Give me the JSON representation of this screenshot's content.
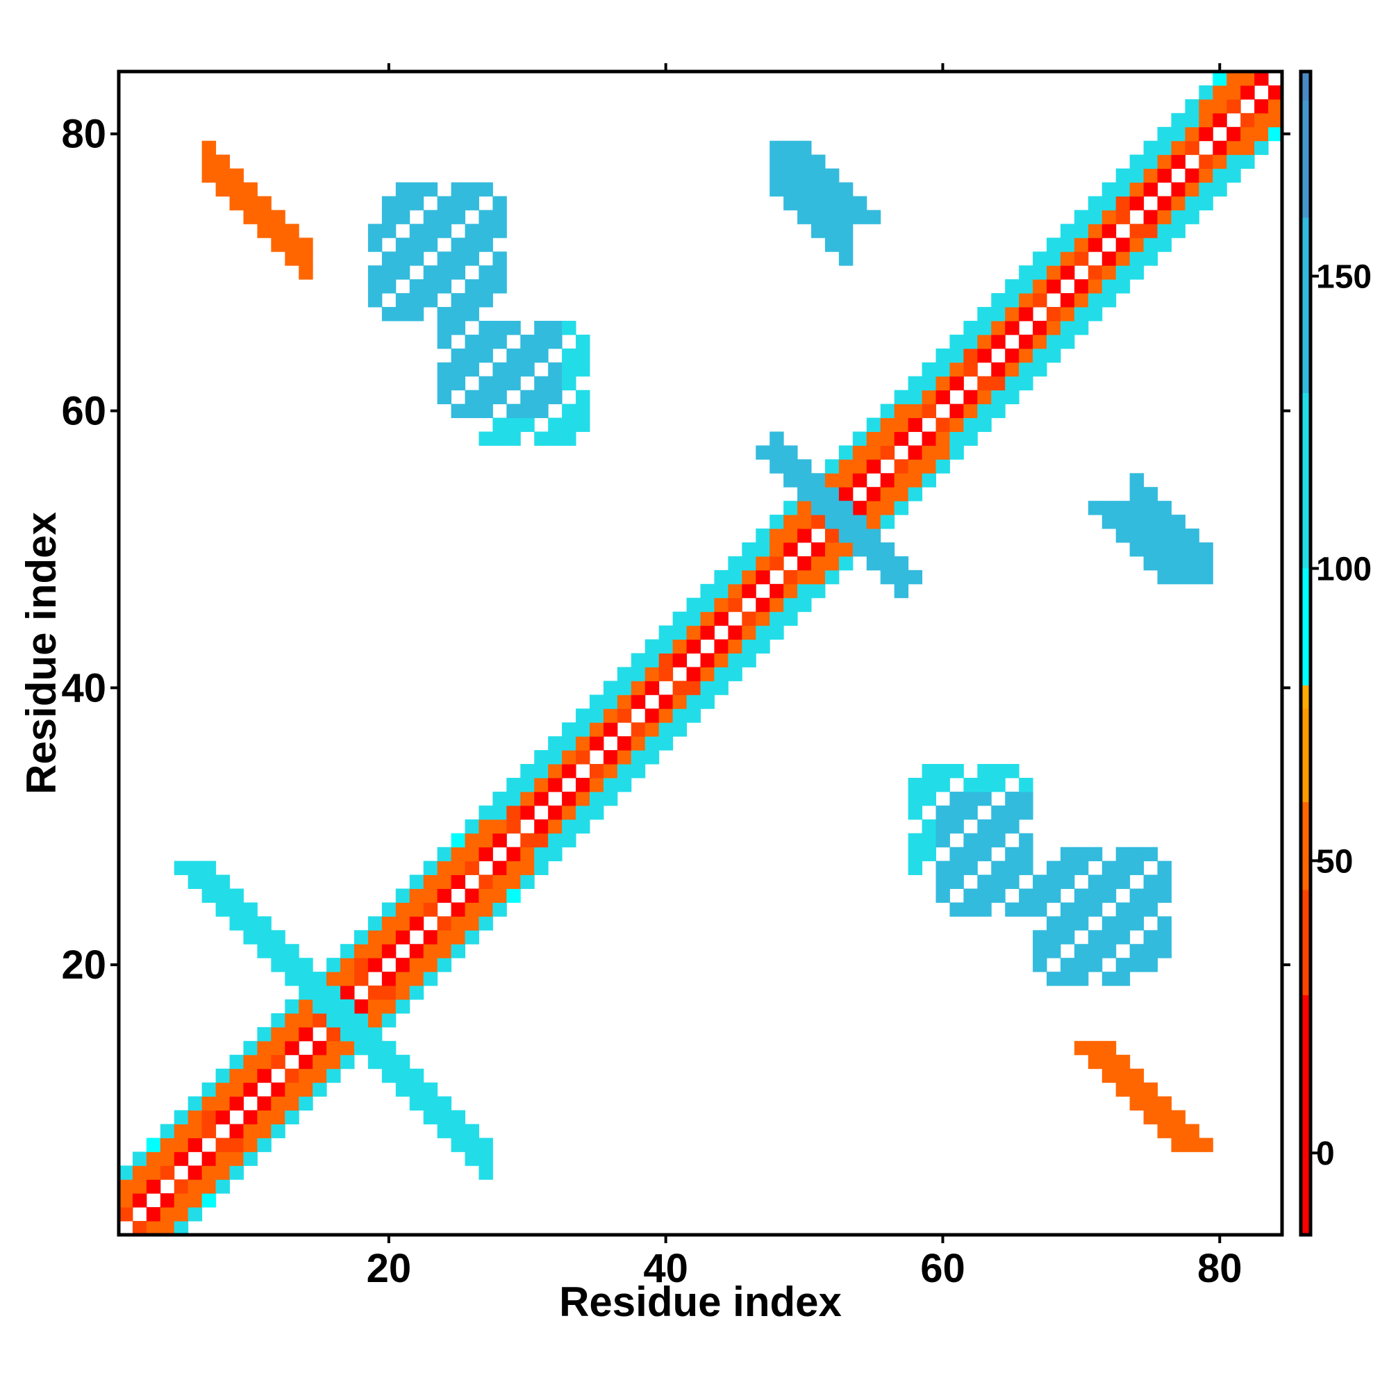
{
  "chart_data": {
    "type": "heatmap",
    "title": "",
    "xlabel": "Residue index",
    "ylabel": "Residue index",
    "xlim": [
      0.5,
      84.5
    ],
    "ylim": [
      0.5,
      84.5
    ],
    "x_ticks": [
      20,
      40,
      60,
      80
    ],
    "y_ticks": [
      20,
      40,
      60,
      80
    ],
    "symmetric": true,
    "grid": false,
    "colorbar": {
      "range": [
        -14,
        185
      ],
      "ticks": [
        0,
        50,
        100,
        150
      ],
      "stops": [
        {
          "value": -14,
          "color": "#ff0000"
        },
        {
          "value": 27,
          "color": "#ff4400"
        },
        {
          "value": 45,
          "color": "#ff6600"
        },
        {
          "value": 60,
          "color": "#ff9900"
        },
        {
          "value": 76,
          "color": "#ffaa00"
        },
        {
          "value": 80,
          "color": "#00ffff"
        },
        {
          "value": 100,
          "color": "#22dde8"
        },
        {
          "value": 130,
          "color": "#33bbdd"
        },
        {
          "value": 160,
          "color": "#4499cc"
        },
        {
          "value": 180,
          "color": "#4a8ac2"
        },
        {
          "value": 185,
          "color": "#ffffff"
        }
      ]
    },
    "diagonal_band": {
      "offsets": [
        1,
        2,
        3,
        4
      ],
      "values": [
        20,
        45,
        50,
        100
      ]
    },
    "blocks": [
      {
        "name": "antiparallel-hairpin-1",
        "kind": "anti",
        "sum": 33,
        "x": [
          12,
          26
        ],
        "width": 2,
        "value": 170
      },
      {
        "name": "antiparallel-hairpin-1-edge",
        "kind": "anti",
        "sum": 33,
        "x": [
          11,
          27
        ],
        "width": 3,
        "value": 120
      },
      {
        "name": "n-c-terminal-pairing",
        "kind": "anti",
        "sum": 85,
        "x": [
          8,
          13
        ],
        "width": 2,
        "value": 30
      },
      {
        "name": "n-c-terminal-pairing-edge",
        "kind": "anti",
        "sum": 85,
        "x": [
          7,
          14
        ],
        "width": 3,
        "value": 55
      },
      {
        "name": "helix-region-1",
        "kind": "parallel",
        "x": [
          28,
          47
        ],
        "offsets": [
          3,
          4
        ],
        "value": 110
      },
      {
        "name": "helix-region-2",
        "kind": "parallel",
        "x": [
          58,
          78
        ],
        "offsets": [
          3,
          4
        ],
        "value": 115
      },
      {
        "name": "hairpin-2",
        "kind": "anti",
        "sum": 105,
        "x": [
          48,
          57
        ],
        "width": 2,
        "value": 140
      },
      {
        "name": "strand-pair-1",
        "kind": "anti",
        "sum": 125,
        "x": [
          48,
          53
        ],
        "width": 2,
        "value": 150
      },
      {
        "name": "strand-pair-2",
        "kind": "anti",
        "sum": 128,
        "x": [
          74,
          79
        ],
        "width": 2,
        "value": 160
      },
      {
        "name": "cluster-a",
        "kind": "patch",
        "x": [
          27,
          34
        ],
        "y": [
          58,
          66
        ],
        "value": 130
      },
      {
        "name": "cluster-b",
        "kind": "patch",
        "x": [
          60,
          66
        ],
        "y": [
          24,
          32
        ],
        "value": 135
      },
      {
        "name": "cluster-c",
        "kind": "patch",
        "x": [
          20,
          28
        ],
        "y": [
          68,
          76
        ],
        "value": 145
      },
      {
        "name": "cluster-d",
        "kind": "patch",
        "x": [
          67,
          73
        ],
        "y": [
          19,
          27
        ],
        "value": 150
      }
    ]
  }
}
